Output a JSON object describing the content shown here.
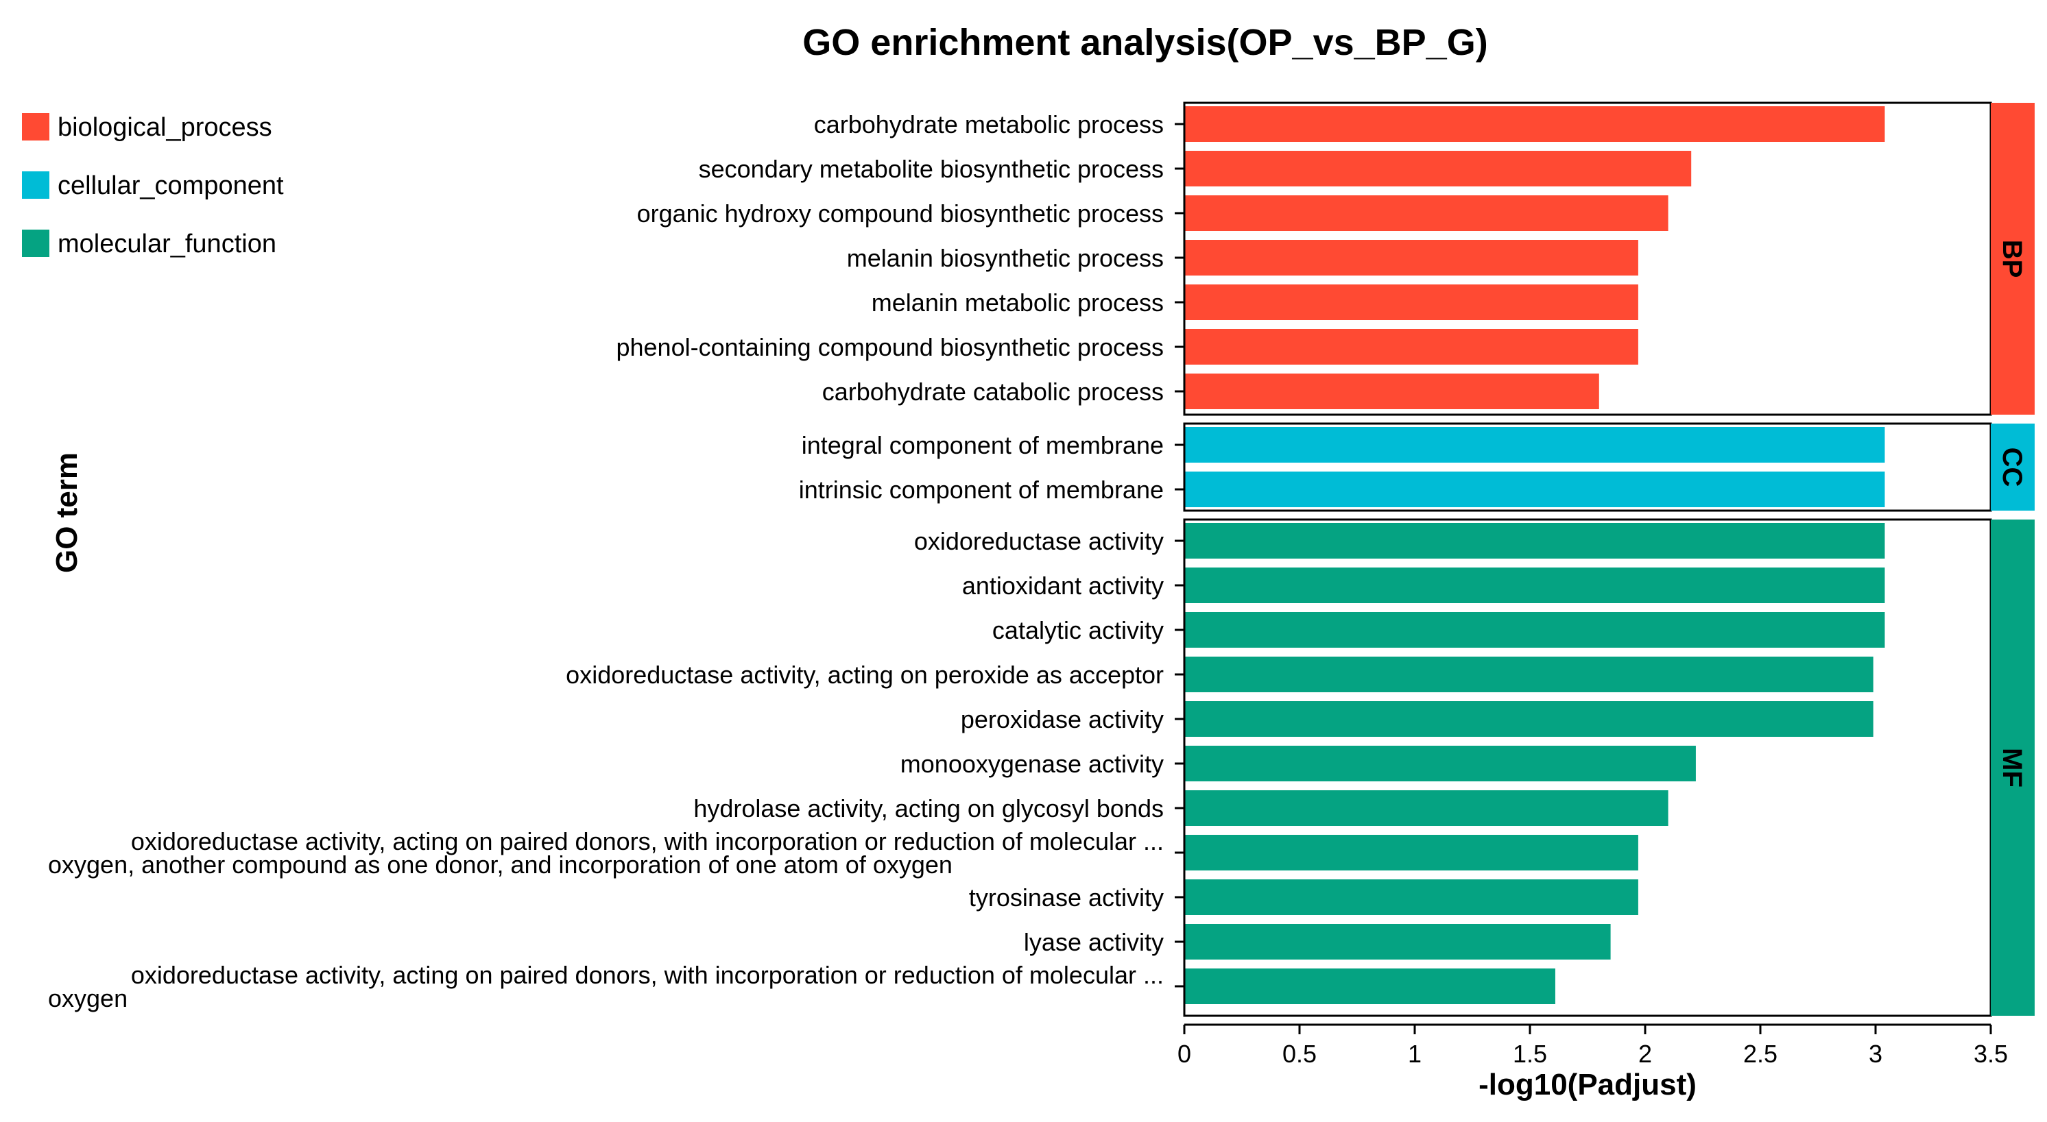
{
  "chart_data": {
    "type": "bar",
    "orientation": "horizontal",
    "title": "GO enrichment analysis(OP_vs_BP_G)",
    "xlabel": "-log10(Padjust)",
    "ylabel": "GO term",
    "xlim": [
      0,
      3.5
    ],
    "xticks": [
      "0",
      "0.5",
      "1",
      "1.5",
      "2",
      "2.5",
      "3",
      "3.5"
    ],
    "xtick_values": [
      0,
      0.5,
      1,
      1.5,
      2,
      2.5,
      3,
      3.5
    ],
    "legend_position": "top-left",
    "legend": [
      {
        "label": "biological_process",
        "color": "#ff4a33"
      },
      {
        "label": "cellular_component",
        "color": "#00bcd6"
      },
      {
        "label": "molecular_function",
        "color": "#05a382"
      }
    ],
    "groups": [
      {
        "code": "BP",
        "color": "#ff4a33",
        "terms": [
          {
            "label": [
              "carbohydrate metabolic process"
            ],
            "value": 3.04
          },
          {
            "label": [
              "secondary metabolite biosynthetic process"
            ],
            "value": 2.2
          },
          {
            "label": [
              "organic hydroxy compound biosynthetic process"
            ],
            "value": 2.1
          },
          {
            "label": [
              "melanin biosynthetic process"
            ],
            "value": 1.97
          },
          {
            "label": [
              "melanin metabolic process"
            ],
            "value": 1.97
          },
          {
            "label": [
              "phenol-containing compound biosynthetic process"
            ],
            "value": 1.97
          },
          {
            "label": [
              "carbohydrate catabolic process"
            ],
            "value": 1.8
          }
        ]
      },
      {
        "code": "CC",
        "color": "#00bcd6",
        "terms": [
          {
            "label": [
              "integral component of membrane"
            ],
            "value": 3.04
          },
          {
            "label": [
              "intrinsic component of membrane"
            ],
            "value": 3.04
          }
        ]
      },
      {
        "code": "MF",
        "color": "#05a382",
        "terms": [
          {
            "label": [
              "oxidoreductase activity"
            ],
            "value": 3.04
          },
          {
            "label": [
              "antioxidant activity"
            ],
            "value": 3.04
          },
          {
            "label": [
              "catalytic activity"
            ],
            "value": 3.04
          },
          {
            "label": [
              "oxidoreductase activity, acting on peroxide as acceptor"
            ],
            "value": 2.99
          },
          {
            "label": [
              "peroxidase activity"
            ],
            "value": 2.99
          },
          {
            "label": [
              "monooxygenase activity"
            ],
            "value": 2.22
          },
          {
            "label": [
              "hydrolase activity, acting on glycosyl bonds"
            ],
            "value": 2.1
          },
          {
            "label": [
              "oxidoreductase activity, acting on paired donors, with incorporation or reduction of molecular ...",
              "oxygen, another compound as one donor, and incorporation of one atom of oxygen"
            ],
            "value": 1.97
          },
          {
            "label": [
              "tyrosinase activity"
            ],
            "value": 1.97
          },
          {
            "label": [
              "lyase activity"
            ],
            "value": 1.85
          },
          {
            "label": [
              "oxidoreductase activity, acting on paired donors, with incorporation or reduction of molecular ...",
              "oxygen"
            ],
            "value": 1.61
          }
        ]
      }
    ]
  }
}
